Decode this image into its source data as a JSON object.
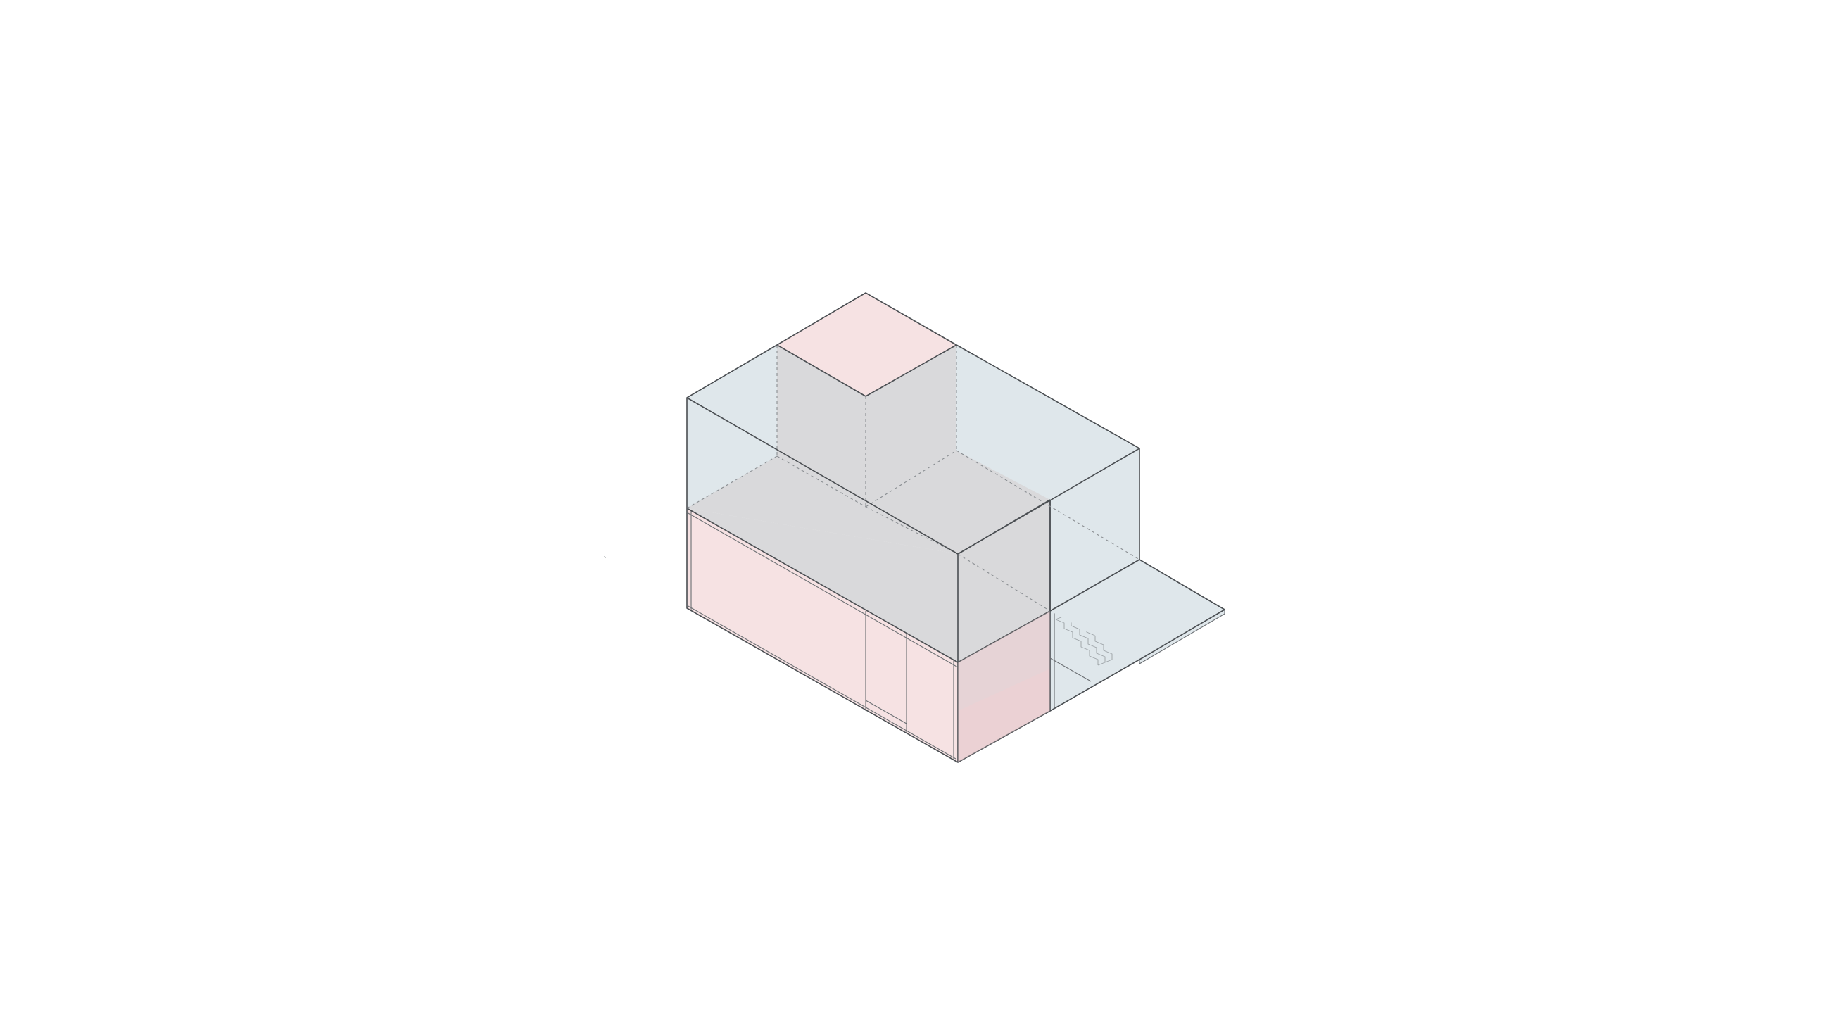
{
  "diagram": {
    "kind": "axonometric-massing-diagram",
    "text_labels": [],
    "palette": {
      "background": "#ffffff",
      "private_volume": "#f6e2e3",
      "glazed_volume": "#dfe7eb",
      "shared_core": "#d9d9db",
      "edge": "#4a4e52"
    },
    "volumes": [
      "upper-glazed-volume",
      "roof-box",
      "grey-central-mass",
      "ground-floor-pink-volume",
      "ground-floor-window-bay",
      "stair-cutaway",
      "cantilevered-terrace"
    ]
  }
}
